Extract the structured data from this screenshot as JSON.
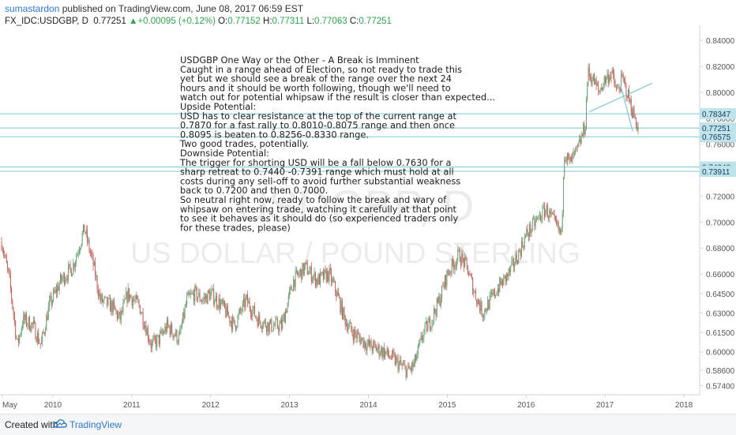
{
  "header": {
    "author": "sumastardon",
    "published_text": "published on TradingView.com, June 08, 2017 06:59 EST",
    "symbol": "FX_IDC:USDGBP, D",
    "last": "0.77251",
    "change": "+0.00095 (+0.12%)",
    "open_label": "O:",
    "open": "0.77152",
    "high_label": "H:",
    "high": "0.77311",
    "low_label": "L:",
    "low": "0.77063",
    "close_label": "C:",
    "close": "0.77251"
  },
  "footer": {
    "created_with": "Created with",
    "brand": "TradingView"
  },
  "colors": {
    "up": "#6aa173",
    "down": "#c0625b",
    "trendline": "#7fc8d4",
    "price_tag": "#bfe3ea",
    "price_tag_text": "#1a3a5c"
  },
  "chart_data": {
    "type": "candlestick",
    "watermark_symbol": "USDGBP, D",
    "watermark_name": "US DOLLAR / POUND STERLING",
    "x_tick_labels": [
      "May",
      "2010",
      "2011",
      "2012",
      "2013",
      "2014",
      "2015",
      "2016",
      "2017",
      "2018"
    ],
    "x_ticks_year": [
      2009.36,
      2010,
      2011,
      2012,
      2013,
      2014,
      2015,
      2016,
      2017,
      2018
    ],
    "x_range": [
      2009.33,
      2018.2
    ],
    "y_range": [
      0.567,
      0.848
    ],
    "y_ticks": [
      "0.84000",
      "0.82000",
      "0.80000",
      "0.78000",
      "0.76000",
      "0.74000",
      "0.72000",
      "0.70000",
      "0.68000",
      "0.66000",
      "0.64500",
      "0.63000",
      "0.61500",
      "0.60000",
      "0.58600",
      "0.57400"
    ],
    "price_path": [
      [
        2009.35,
        0.685
      ],
      [
        2009.45,
        0.655
      ],
      [
        2009.55,
        0.605
      ],
      [
        2009.62,
        0.625
      ],
      [
        2009.75,
        0.62
      ],
      [
        2009.85,
        0.605
      ],
      [
        2009.95,
        0.635
      ],
      [
        2010.1,
        0.655
      ],
      [
        2010.25,
        0.665
      ],
      [
        2010.4,
        0.695
      ],
      [
        2010.52,
        0.665
      ],
      [
        2010.6,
        0.64
      ],
      [
        2010.75,
        0.635
      ],
      [
        2010.85,
        0.625
      ],
      [
        2010.95,
        0.645
      ],
      [
        2011.1,
        0.635
      ],
      [
        2011.25,
        0.605
      ],
      [
        2011.35,
        0.61
      ],
      [
        2011.45,
        0.62
      ],
      [
        2011.6,
        0.61
      ],
      [
        2011.7,
        0.64
      ],
      [
        2011.8,
        0.645
      ],
      [
        2011.9,
        0.64
      ],
      [
        2012.0,
        0.645
      ],
      [
        2012.15,
        0.635
      ],
      [
        2012.3,
        0.62
      ],
      [
        2012.45,
        0.64
      ],
      [
        2012.6,
        0.625
      ],
      [
        2012.75,
        0.62
      ],
      [
        2012.9,
        0.62
      ],
      [
        2013.05,
        0.655
      ],
      [
        2013.2,
        0.665
      ],
      [
        2013.35,
        0.655
      ],
      [
        2013.5,
        0.66
      ],
      [
        2013.6,
        0.645
      ],
      [
        2013.7,
        0.625
      ],
      [
        2013.8,
        0.615
      ],
      [
        2013.9,
        0.61
      ],
      [
        2014.0,
        0.605
      ],
      [
        2014.2,
        0.6
      ],
      [
        2014.4,
        0.59
      ],
      [
        2014.5,
        0.585
      ],
      [
        2014.58,
        0.59
      ],
      [
        2014.7,
        0.615
      ],
      [
        2014.8,
        0.625
      ],
      [
        2014.9,
        0.64
      ],
      [
        2015.0,
        0.66
      ],
      [
        2015.15,
        0.675
      ],
      [
        2015.25,
        0.665
      ],
      [
        2015.35,
        0.645
      ],
      [
        2015.45,
        0.63
      ],
      [
        2015.55,
        0.64
      ],
      [
        2015.65,
        0.65
      ],
      [
        2015.78,
        0.66
      ],
      [
        2015.9,
        0.675
      ],
      [
        2016.0,
        0.69
      ],
      [
        2016.12,
        0.7
      ],
      [
        2016.25,
        0.71
      ],
      [
        2016.35,
        0.7
      ],
      [
        2016.45,
        0.69
      ],
      [
        2016.48,
        0.755
      ],
      [
        2016.55,
        0.745
      ],
      [
        2016.65,
        0.755
      ],
      [
        2016.75,
        0.775
      ],
      [
        2016.78,
        0.815
      ],
      [
        2016.85,
        0.81
      ],
      [
        2016.92,
        0.8
      ],
      [
        2017.0,
        0.81
      ],
      [
        2017.08,
        0.815
      ],
      [
        2017.15,
        0.8
      ],
      [
        2017.22,
        0.81
      ],
      [
        2017.28,
        0.8
      ],
      [
        2017.35,
        0.785
      ],
      [
        2017.42,
        0.773
      ]
    ],
    "trendlines": [
      {
        "x": [
          2016.8,
          2017.6
        ],
        "y": [
          0.785,
          0.807
        ]
      },
      {
        "x": [
          2017.2,
          2017.35
        ],
        "y": [
          0.805,
          0.77
        ]
      }
    ],
    "horizontal_levels": [
      "0.78347",
      "0.77251",
      "0.76575",
      "0.74248",
      "0.73911"
    ],
    "price_tags": [
      {
        "label": "0.78347",
        "level": 0.78347
      },
      {
        "label": "0.77251",
        "level": 0.77251
      },
      {
        "label": "0.76575",
        "level": 0.76575
      },
      {
        "label": "0.74248",
        "level": 0.74248
      },
      {
        "label": "0.73911",
        "level": 0.73911
      }
    ],
    "note_lines": [
      "USDGBP   One Way or the Other - A Break is Imminent",
      "Caught in a range ahead of Election, so not ready to trade this",
      "yet but we should see a break of the range over the next 24",
      "hours and it should be worth following, though we'll need to",
      "watch out for potential whipsaw if the result is closer than expected...",
      "Upside Potential:",
      "USD has to clear resistance at the top of the current range at",
      "0.7870 for a fast rally to 0.8010-0.8075 range and then once",
      "0.8095 is beaten to 0.8256-0.8330 range.",
      "Two good trades, potentially.",
      "Downside Potential:",
      "The trigger for shorting USD will be a fall below 0.7630 for a",
      "sharp retreat to 0.7440 -0.7391 range which must hold at all",
      "costs during any sell-off to avoid further substantial weakness",
      "back to 0.7200 and then 0.7000.",
      "So neutral right now, ready to follow the break and wary of",
      "whipsaw on entering trade, watching it carefully at that point",
      "to see it behaves as it should do (so experienced traders only",
      "for these trades, please)"
    ]
  }
}
